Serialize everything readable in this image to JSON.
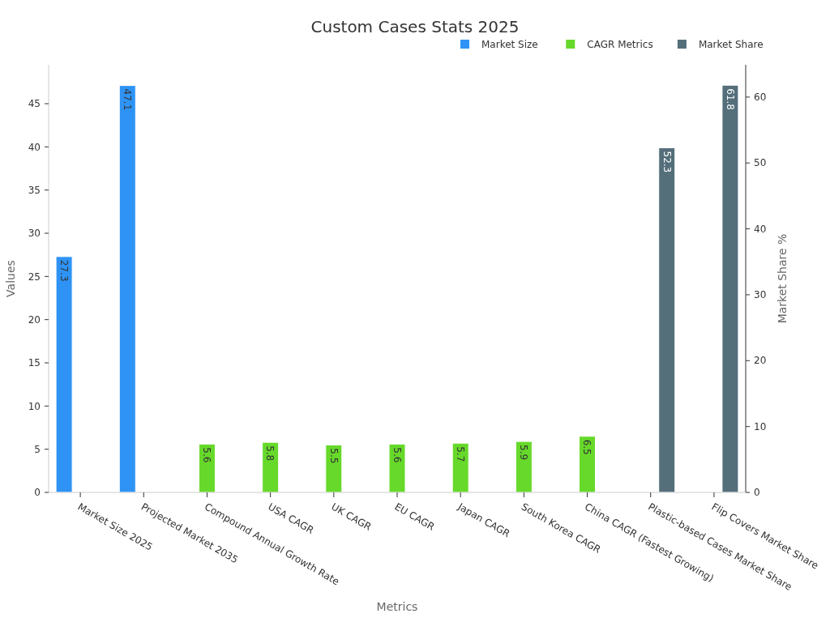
{
  "chart_data": {
    "type": "bar",
    "title": "Custom Cases Stats 2025",
    "xlabel": "Metrics",
    "ylabel": "Values",
    "y2label": "Market Share %",
    "categories": [
      "Market Size 2025",
      "Projected Market 2035",
      "Compound Annual Growth Rate",
      "USA CAGR",
      "UK CAGR",
      "EU CAGR",
      "Japan CAGR",
      "South Korea CAGR",
      "China CAGR (Fastest Growing)",
      "Plastic-based Cases Market Share",
      "Flip Covers Market Share"
    ],
    "series": [
      {
        "name": "Market Size",
        "color": "#2e93f5",
        "values": [
          27.3,
          47.1,
          null,
          null,
          null,
          null,
          null,
          null,
          null,
          null,
          null
        ]
      },
      {
        "name": "CAGR Metrics",
        "color": "#66d92a",
        "values": [
          null,
          null,
          5.6,
          5.8,
          5.5,
          5.6,
          5.7,
          5.9,
          6.5,
          null,
          null
        ]
      },
      {
        "name": "Market Share",
        "color": "#546e7a",
        "axis": "y2",
        "values": [
          null,
          null,
          null,
          null,
          null,
          null,
          null,
          null,
          null,
          52.3,
          61.8
        ]
      }
    ],
    "ylim": [
      0,
      49.5
    ],
    "yticks": [
      0,
      5,
      10,
      15,
      20,
      25,
      30,
      35,
      40,
      45
    ],
    "y2lim": [
      0,
      64.9
    ],
    "y2ticks": [
      0,
      10,
      20,
      30,
      40,
      50,
      60
    ],
    "data_labels": true,
    "grid": false,
    "legend": "top right"
  }
}
